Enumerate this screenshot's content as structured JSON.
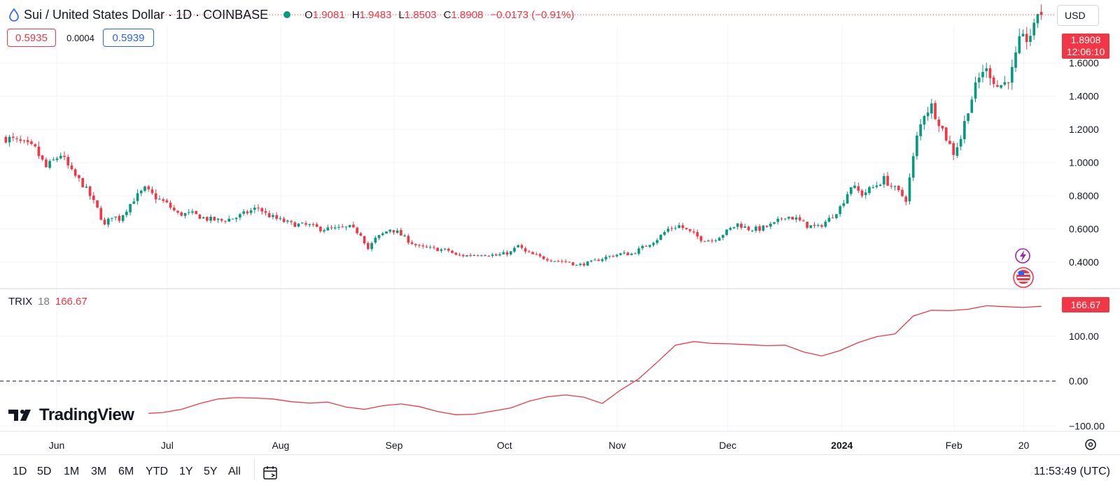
{
  "header": {
    "symbol_title": "Sui / United States Dollar · 1D · COINBASE",
    "ohlc": {
      "open_label": "O",
      "open": "1.9081",
      "high_label": "H",
      "high": "1.9483",
      "low_label": "L",
      "low": "1.8503",
      "close_label": "C",
      "close": "1.8908",
      "change": "−0.0173 (−0.91%)"
    },
    "currency": "USD"
  },
  "quote_boxes": {
    "bid": "0.5935",
    "spread": "0.0004",
    "ask": "0.5939"
  },
  "last_price_tag": {
    "price": "1.8908",
    "countdown": "12:06:10"
  },
  "indicator": {
    "name": "TRIX",
    "period": "18",
    "value": "166.67"
  },
  "brand": {
    "name": "TradingView"
  },
  "timeframes": [
    "1D",
    "5D",
    "1M",
    "3M",
    "6M",
    "YTD",
    "1Y",
    "5Y",
    "All"
  ],
  "clock": "11:53:49 (UTC)",
  "colors": {
    "up": "#089981",
    "down": "#f23645",
    "accent_blue": "#2962ff",
    "trix_line": "#f23645"
  },
  "chart_data": [
    {
      "type": "candlestick",
      "series_name": "Sui / United States Dollar",
      "y_tick_labels": [
        "0.4000",
        "0.6000",
        "0.8000",
        "1.0000",
        "1.2000",
        "1.4000",
        "1.6000"
      ],
      "ylim": [
        0.24,
        1.98
      ],
      "x_tick_labels": [
        "Jun",
        "Jul",
        "Aug",
        "Sep",
        "Oct",
        "Nov",
        "Dec",
        "2024",
        "Feb",
        "20"
      ],
      "x_ticks_pos": [
        0.9,
        31.1,
        62.1,
        93.1,
        123.3,
        154.1,
        184.3,
        215.5,
        246.1,
        265.2
      ],
      "xlim": [
        -14.6,
        273.9
      ],
      "grid": true,
      "current_price_line": 1.8908,
      "close_path": [
        [
          -13,
          1.15
        ],
        [
          -9,
          1.12
        ],
        [
          -5,
          1.08
        ],
        [
          -2,
          0.97
        ],
        [
          2,
          1.05
        ],
        [
          5,
          0.94
        ],
        [
          8,
          0.87
        ],
        [
          10,
          0.8
        ],
        [
          12,
          0.72
        ],
        [
          14,
          0.62
        ],
        [
          16,
          0.68
        ],
        [
          18,
          0.66
        ],
        [
          20,
          0.72
        ],
        [
          22,
          0.78
        ],
        [
          25,
          0.84
        ],
        [
          28,
          0.79
        ],
        [
          31,
          0.75
        ],
        [
          34,
          0.69
        ],
        [
          38,
          0.69
        ],
        [
          42,
          0.66
        ],
        [
          46,
          0.65
        ],
        [
          50,
          0.67
        ],
        [
          54,
          0.71
        ],
        [
          56,
          0.73
        ],
        [
          58,
          0.69
        ],
        [
          61,
          0.66
        ],
        [
          65,
          0.63
        ],
        [
          70,
          0.62
        ],
        [
          73,
          0.6
        ],
        [
          77,
          0.6
        ],
        [
          81,
          0.61
        ],
        [
          84,
          0.57
        ],
        [
          86,
          0.48
        ],
        [
          88,
          0.54
        ],
        [
          92,
          0.6
        ],
        [
          94,
          0.58
        ],
        [
          97,
          0.53
        ],
        [
          100,
          0.49
        ],
        [
          104,
          0.48
        ],
        [
          108,
          0.47
        ],
        [
          110,
          0.44
        ],
        [
          113,
          0.44
        ],
        [
          117,
          0.45
        ],
        [
          121,
          0.44
        ],
        [
          125,
          0.46
        ],
        [
          127,
          0.5
        ],
        [
          129,
          0.46
        ],
        [
          133,
          0.43
        ],
        [
          137,
          0.41
        ],
        [
          141,
          0.4
        ],
        [
          143,
          0.38
        ],
        [
          147,
          0.4
        ],
        [
          151,
          0.43
        ],
        [
          155,
          0.45
        ],
        [
          158,
          0.45
        ],
        [
          162,
          0.5
        ],
        [
          165,
          0.54
        ],
        [
          168,
          0.6
        ],
        [
          171,
          0.62
        ],
        [
          174,
          0.58
        ],
        [
          177,
          0.54
        ],
        [
          180,
          0.53
        ],
        [
          183,
          0.57
        ],
        [
          187,
          0.63
        ],
        [
          190,
          0.6
        ],
        [
          193,
          0.6
        ],
        [
          197,
          0.63
        ],
        [
          200,
          0.68
        ],
        [
          203,
          0.66
        ],
        [
          206,
          0.62
        ],
        [
          209,
          0.61
        ],
        [
          212,
          0.66
        ],
        [
          215,
          0.73
        ],
        [
          218,
          0.86
        ],
        [
          221,
          0.81
        ],
        [
          224,
          0.85
        ],
        [
          227,
          0.9
        ],
        [
          230,
          0.84
        ],
        [
          233,
          0.78
        ],
        [
          236,
          1.15
        ],
        [
          238,
          1.3
        ],
        [
          240,
          1.34
        ],
        [
          242,
          1.25
        ],
        [
          244,
          1.15
        ],
        [
          246,
          1.06
        ],
        [
          248,
          1.15
        ],
        [
          250,
          1.33
        ],
        [
          252,
          1.45
        ],
        [
          254,
          1.56
        ],
        [
          256,
          1.54
        ],
        [
          258,
          1.46
        ],
        [
          260,
          1.48
        ],
        [
          262,
          1.55
        ],
        [
          264,
          1.72
        ],
        [
          266,
          1.75
        ],
        [
          268,
          1.8
        ],
        [
          269,
          1.91
        ],
        [
          270,
          1.89
        ]
      ]
    },
    {
      "type": "line",
      "series_name": "TRIX 18",
      "y_tick_labels": [
        "−100.00",
        "0.00",
        "100.00"
      ],
      "ylim": [
        -112,
        206
      ],
      "zero_line": true,
      "x": [
        26,
        30,
        35,
        40,
        45,
        50,
        55,
        60,
        65,
        70,
        75,
        80,
        85,
        90,
        95,
        100,
        105,
        110,
        115,
        120,
        125,
        130,
        135,
        140,
        145,
        150,
        155,
        160,
        165,
        170,
        175,
        180,
        185,
        190,
        195,
        200,
        205,
        210,
        215,
        220,
        225,
        230,
        235,
        240,
        245,
        250,
        255,
        260,
        265,
        270
      ],
      "values": [
        -72,
        -70,
        -63,
        -50,
        -40,
        -37,
        -38,
        -40,
        -46,
        -49,
        -47,
        -58,
        -63,
        -55,
        -51,
        -57,
        -68,
        -75,
        -74,
        -67,
        -60,
        -45,
        -35,
        -31,
        -36,
        -50,
        -20,
        5,
        42,
        80,
        88,
        84,
        83,
        81,
        79,
        80,
        65,
        56,
        68,
        86,
        99,
        105,
        145,
        158,
        157,
        160,
        168,
        166,
        164,
        166.67
      ]
    }
  ]
}
